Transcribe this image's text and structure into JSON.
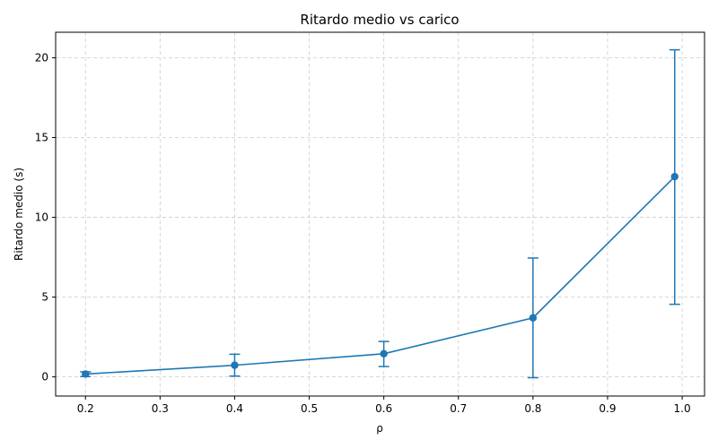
{
  "chart_data": {
    "type": "line",
    "title": "Ritardo medio vs carico",
    "xlabel": "ρ",
    "ylabel": "Ritardo medio (s)",
    "xlim": [
      0.16,
      1.03
    ],
    "ylim": [
      -1.2,
      21.6
    ],
    "xticks": [
      0.2,
      0.3,
      0.4,
      0.5,
      0.6,
      0.7,
      0.8,
      0.9,
      1.0
    ],
    "xtick_labels": [
      "0.2",
      "0.3",
      "0.4",
      "0.5",
      "0.6",
      "0.7",
      "0.8",
      "0.9",
      "1.0"
    ],
    "yticks": [
      0,
      5,
      10,
      15,
      20
    ],
    "ytick_labels": [
      "0",
      "5",
      "10",
      "15",
      "20"
    ],
    "grid": true,
    "series": [
      {
        "x": [
          0.2,
          0.4,
          0.6,
          0.8,
          0.99
        ],
        "y": [
          0.18,
          0.73,
          1.45,
          3.7,
          12.55
        ],
        "err_low": [
          0.02,
          0.05,
          0.65,
          -0.05,
          4.55
        ],
        "err_high": [
          0.32,
          1.42,
          2.22,
          7.45,
          20.5
        ],
        "color": "#1f77b4"
      }
    ]
  }
}
